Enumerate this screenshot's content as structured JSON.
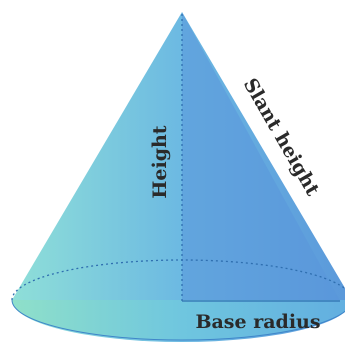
{
  "diagram": {
    "labels": {
      "height": "Height",
      "slant_height": "Slant height",
      "base_radius": "Base radius"
    },
    "colors": {
      "body_left": "#7fd3dc",
      "body_right": "#5a9bdb",
      "base_fill": "#6ec6d8",
      "outline": "#2f7fc6",
      "text": "#2a2a2a"
    }
  }
}
